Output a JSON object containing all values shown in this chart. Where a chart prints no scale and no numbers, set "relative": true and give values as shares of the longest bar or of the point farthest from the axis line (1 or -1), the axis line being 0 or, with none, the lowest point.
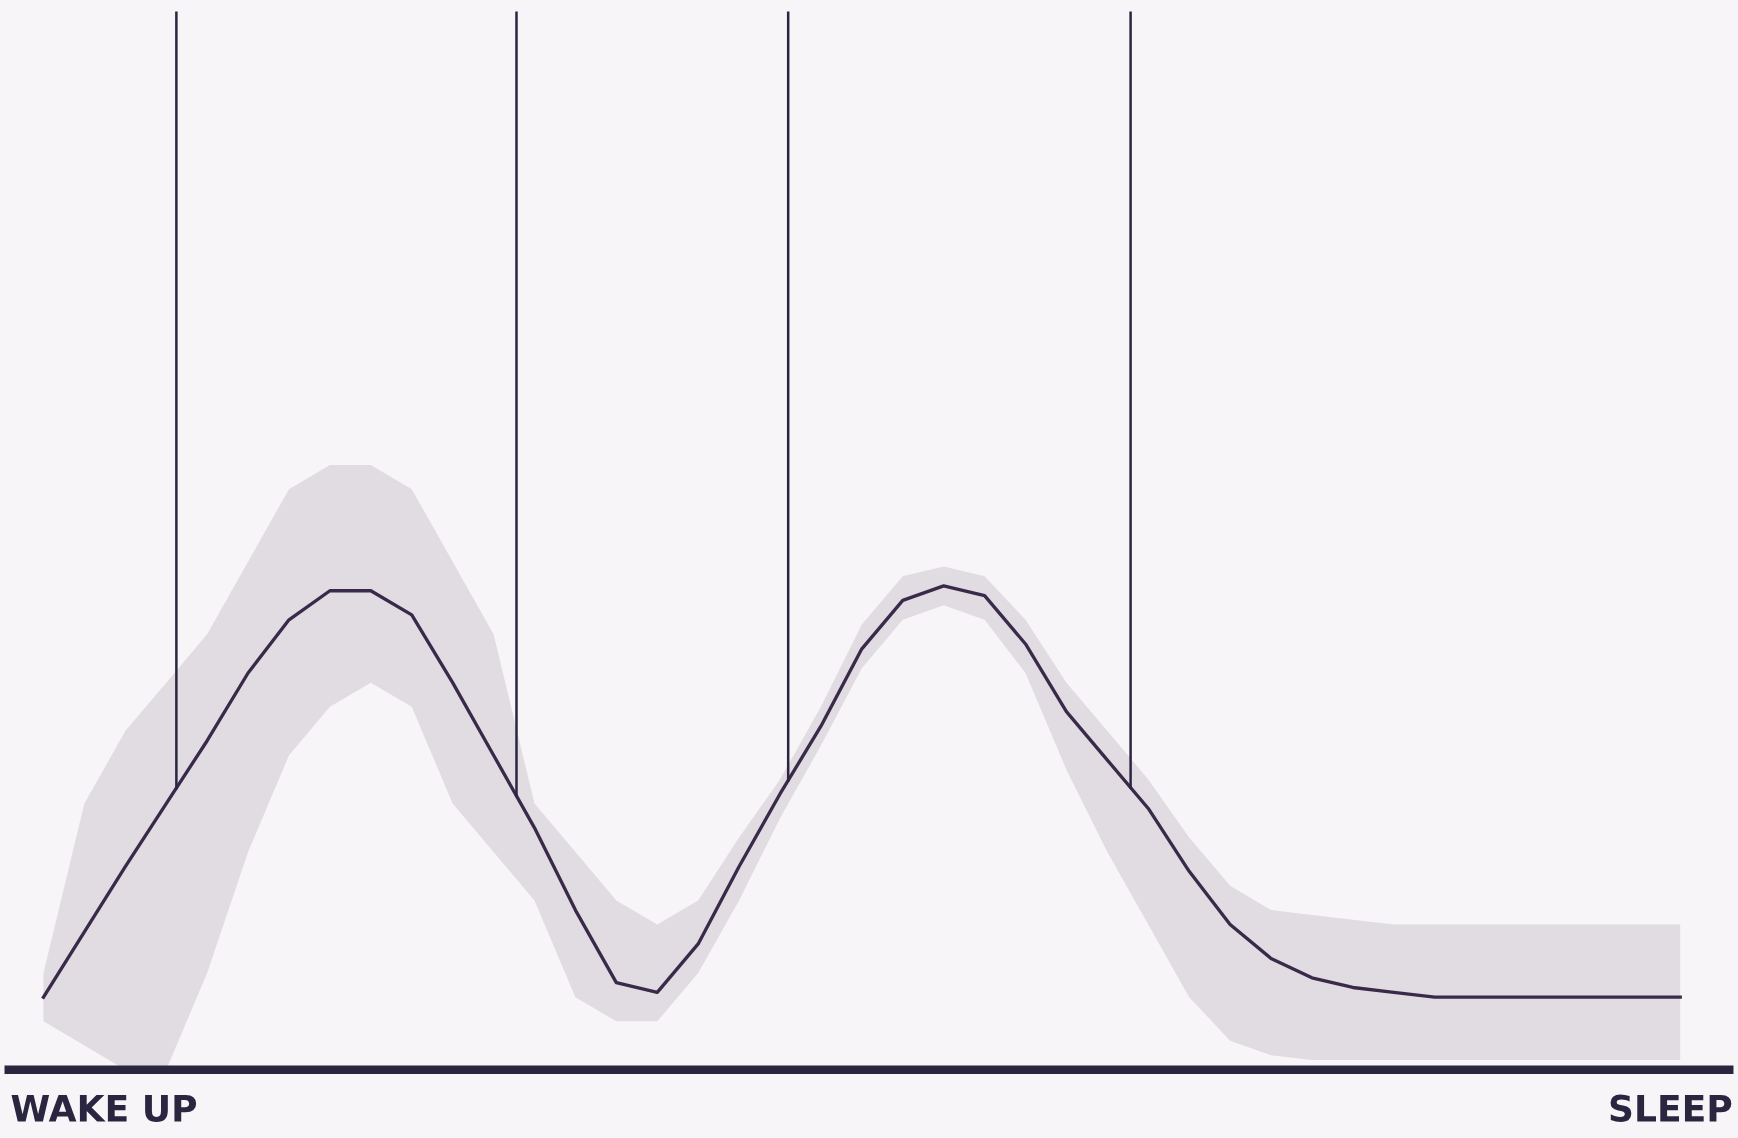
{
  "chart_data": {
    "type": "line",
    "relative": true,
    "marker": "none",
    "line_style": "solid",
    "annotations": [
      "WAKE UP",
      "SLEEP"
    ],
    "categories": [
      null,
      null,
      null,
      null,
      null,
      null,
      null,
      null,
      null,
      null,
      null,
      null,
      null,
      null,
      null,
      null,
      null,
      null,
      null,
      null,
      null,
      null,
      null,
      null,
      null,
      null,
      null,
      null,
      null,
      null,
      null,
      null,
      null,
      null,
      null,
      null,
      null,
      null,
      null,
      null,
      null
    ],
    "series": [
      {
        "color": "#3a2a4a",
        "values": [
          0.15,
          0.285,
          0.42,
          0.55,
          0.68,
          0.82,
          0.93,
          0.99,
          0.99,
          0.94,
          0.8,
          0.65,
          0.5,
          0.33,
          0.18,
          0.16,
          0.26,
          0.42,
          0.57,
          0.71,
          0.87,
          0.97,
          1.0,
          0.98,
          0.88,
          0.74,
          0.64,
          0.54,
          0.41,
          0.3,
          0.23,
          0.19,
          0.17,
          0.16,
          0.15,
          0.15,
          0.15,
          0.15,
          0.15,
          0.15,
          0.15
        ],
        "lower": [
          0.1,
          0.05,
          0.0,
          0.0,
          0.2,
          0.45,
          0.65,
          0.75,
          0.8,
          0.75,
          0.55,
          0.45,
          0.35,
          0.15,
          0.1,
          0.1,
          0.2,
          0.35,
          0.52,
          0.67,
          0.83,
          0.93,
          0.96,
          0.93,
          0.82,
          0.62,
          0.45,
          0.3,
          0.15,
          0.06,
          0.03,
          0.02,
          0.02,
          0.02,
          0.02,
          0.02,
          0.02,
          0.02,
          0.02,
          0.02,
          0.02
        ],
        "upper": [
          0.2,
          0.55,
          0.7,
          0.8,
          0.9,
          1.05,
          1.2,
          1.25,
          1.25,
          1.2,
          1.05,
          0.9,
          0.55,
          0.45,
          0.35,
          0.3,
          0.35,
          0.48,
          0.6,
          0.75,
          0.92,
          1.02,
          1.04,
          1.02,
          0.93,
          0.8,
          0.7,
          0.6,
          0.48,
          0.38,
          0.33,
          0.32,
          0.31,
          0.3,
          0.3,
          0.3,
          0.3,
          0.3,
          0.3,
          0.3,
          0.3
        ]
      }
    ]
  }
}
